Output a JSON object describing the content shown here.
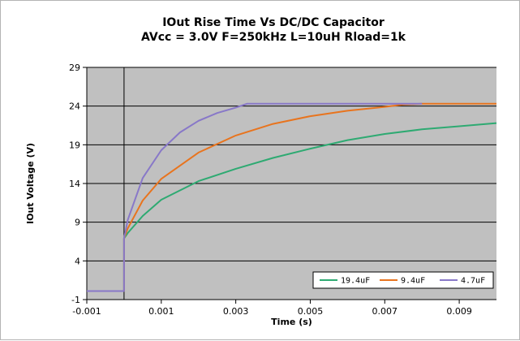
{
  "chart_data": {
    "type": "line",
    "title": "IOut Rise Time Vs DC/DC Capacitor",
    "subtitle": "AVcc = 3.0V F=250kHz L=10uH Rload=1k",
    "xlabel": "Time (s)",
    "ylabel": "IOut Voltage (V)",
    "xlim": [
      -0.001,
      0.01
    ],
    "ylim": [
      -1,
      29
    ],
    "x_ticks": [
      -0.001,
      0.001,
      0.003,
      0.005,
      0.007,
      0.009
    ],
    "x_tick_labels": [
      "-0.001",
      "0.001",
      "0.003",
      "0.005",
      "0.007",
      "0.009"
    ],
    "y_ticks": [
      -1,
      4,
      9,
      14,
      19,
      24,
      29
    ],
    "y_tick_labels": [
      "-1",
      "4",
      "9",
      "14",
      "19",
      "24",
      "29"
    ],
    "grid": "horizontal",
    "plot_background": "#c0c0c0",
    "legend_position": "bottom-right",
    "series": [
      {
        "name": "19.4uF",
        "color": "#2eaa72",
        "x": [
          -0.001,
          0.0,
          0.0,
          0.0001,
          0.0005,
          0.001,
          0.002,
          0.003,
          0.004,
          0.005,
          0.006,
          0.007,
          0.008,
          0.009,
          0.01
        ],
        "y": [
          0.1,
          0.1,
          6.9,
          7.6,
          9.8,
          11.9,
          14.3,
          15.9,
          17.3,
          18.5,
          19.6,
          20.4,
          21.0,
          21.4,
          21.8
        ]
      },
      {
        "name": "9.4uF",
        "color": "#e8741e",
        "x": [
          -0.001,
          0.0,
          0.0,
          0.0001,
          0.0005,
          0.001,
          0.002,
          0.003,
          0.004,
          0.005,
          0.006,
          0.007,
          0.0075,
          0.008,
          0.009,
          0.01
        ],
        "y": [
          0.1,
          0.1,
          6.9,
          8.2,
          11.8,
          14.6,
          18.0,
          20.2,
          21.7,
          22.7,
          23.4,
          23.9,
          24.2,
          24.3,
          24.3,
          24.3
        ]
      },
      {
        "name": "4.7uF",
        "color": "#8878c8",
        "x": [
          -0.001,
          0.0,
          0.0,
          0.0001,
          0.0005,
          0.001,
          0.0015,
          0.002,
          0.0025,
          0.003,
          0.0033,
          0.004,
          0.005,
          0.006,
          0.007,
          0.008
        ],
        "y": [
          0.1,
          0.1,
          6.9,
          9.3,
          14.7,
          18.3,
          20.6,
          22.1,
          23.1,
          23.8,
          24.3,
          24.3,
          24.3,
          24.3,
          24.3,
          24.3
        ]
      }
    ]
  }
}
